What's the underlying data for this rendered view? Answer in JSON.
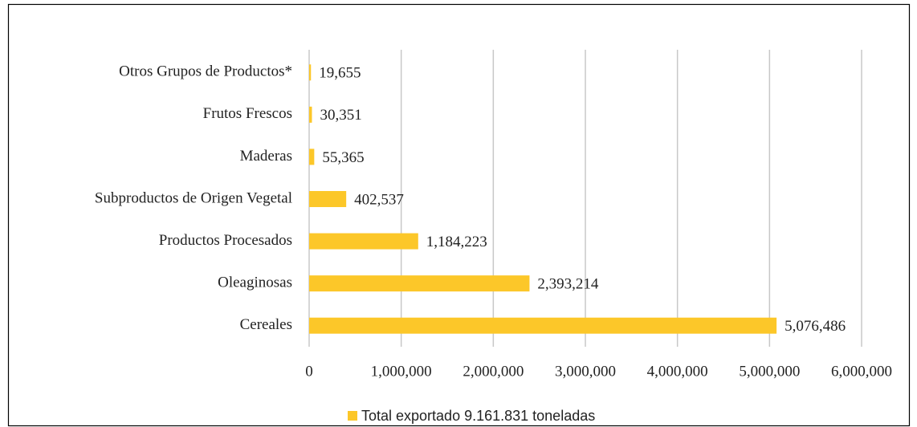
{
  "chart_data": {
    "type": "bar",
    "orientation": "horizontal",
    "categories": [
      "Otros Grupos de Productos*",
      "Frutos Frescos",
      "Maderas",
      "Subproductos de Origen Vegetal",
      "Productos Procesados",
      "Oleaginosas",
      "Cereales"
    ],
    "series": [
      {
        "name": "Total exportado 9.161.831 toneladas",
        "color": "#fcc729",
        "values": [
          19655,
          30351,
          55365,
          402537,
          1184223,
          2393214,
          5076486
        ],
        "value_labels": [
          "19,655",
          "30,351",
          "55,365",
          "402,537",
          "1,184,223",
          "2,393,214",
          "5,076,486"
        ]
      }
    ],
    "xlim": [
      0,
      6000000
    ],
    "xticks": [
      0,
      {
        "value": 1000000,
        "label": "1,000,000"
      },
      {
        "value": 2000000,
        "label": "2,000,000"
      },
      {
        "value": 3000000,
        "label": "3,000,000"
      },
      {
        "value": 4000000,
        "label": "4,000,000"
      },
      {
        "value": 5000000,
        "label": "5,000,000"
      },
      {
        "value": 6000000,
        "label": "6,000,000"
      }
    ],
    "grid": true,
    "legend": "bottom"
  }
}
